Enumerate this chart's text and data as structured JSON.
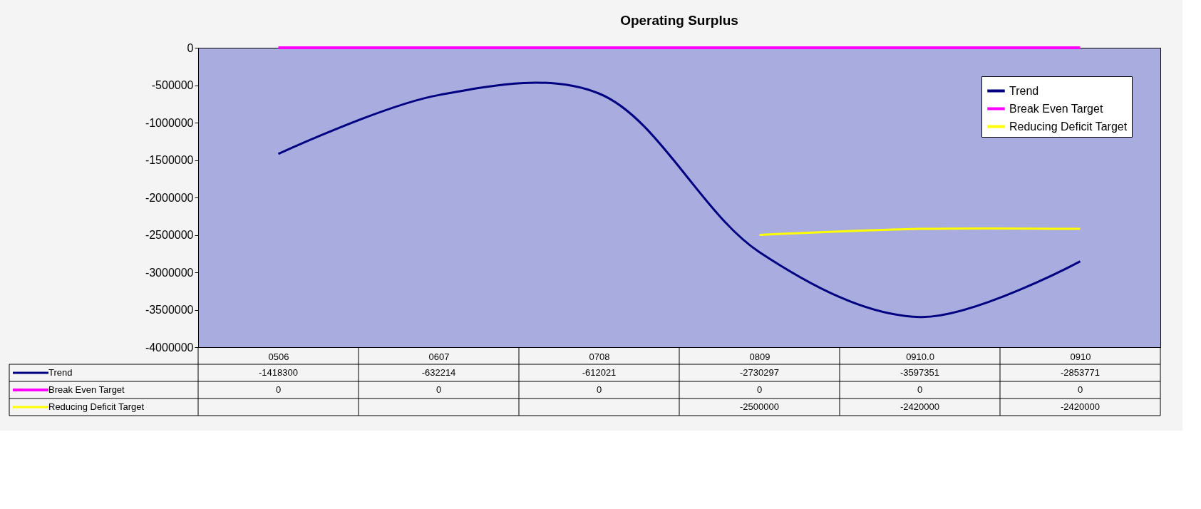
{
  "chart_data": {
    "type": "line",
    "title": "Operating Surplus",
    "categories": [
      "0506",
      "0607",
      "0708",
      "0809",
      "0910.0",
      "0910"
    ],
    "series": [
      {
        "name": "Trend",
        "color": "#000080",
        "values": [
          -1418300,
          -632214,
          -612021,
          -2730297,
          -3597351,
          -2853771
        ]
      },
      {
        "name": "Break Even Target",
        "color": "#ff00ff",
        "values": [
          0,
          0,
          0,
          0,
          0,
          0
        ]
      },
      {
        "name": "Reducing Deficit Target",
        "color": "#ffff00",
        "values": [
          null,
          null,
          null,
          -2500000,
          -2420000,
          -2420000
        ]
      }
    ],
    "ylim": [
      -4000000,
      0
    ],
    "yticks": [
      -4000000,
      -3500000,
      -3000000,
      -2500000,
      -2000000,
      -1500000,
      -1000000,
      -500000,
      0
    ],
    "grid": false,
    "legend": "top right",
    "data_labels": true,
    "line_style": "solid"
  }
}
